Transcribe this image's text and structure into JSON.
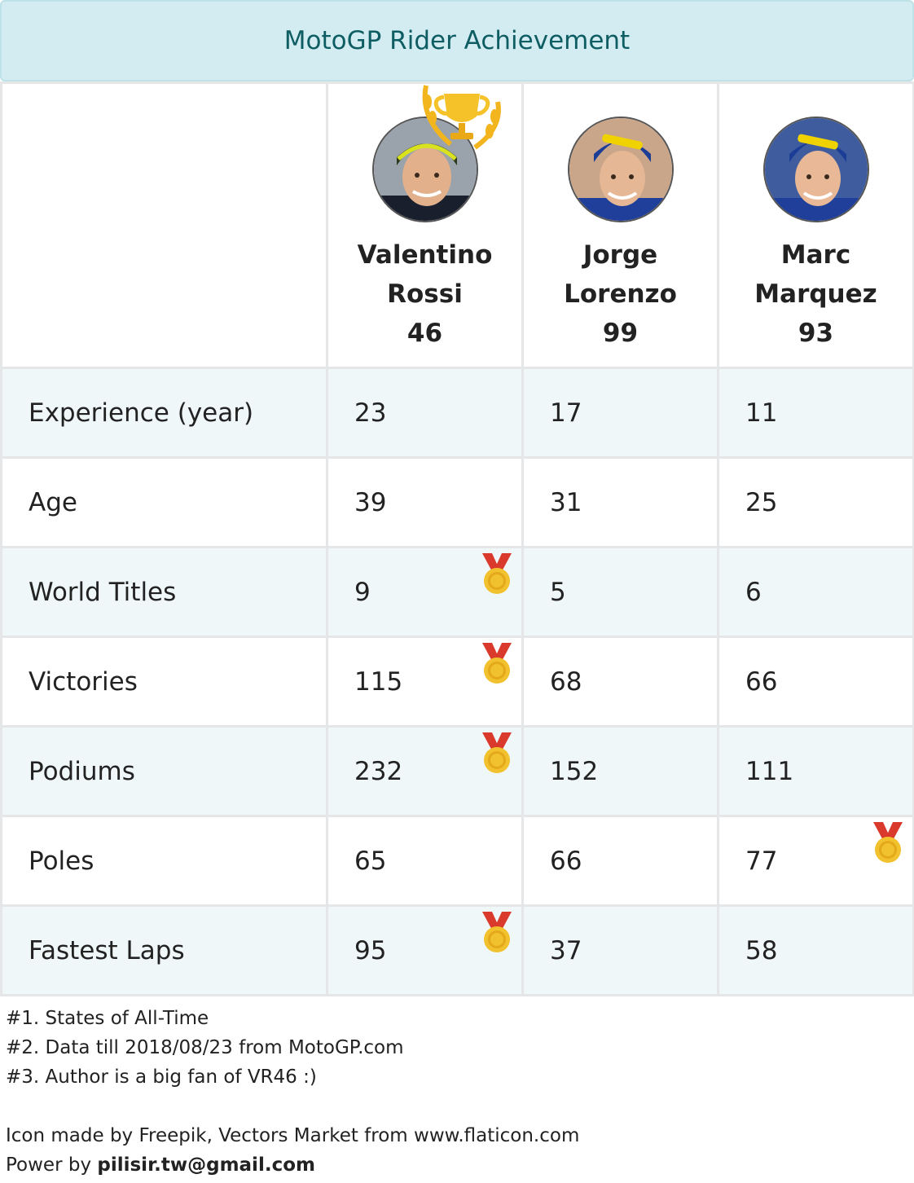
{
  "title": "MotoGP Rider Achievement",
  "riders": [
    {
      "first": "Valentino",
      "last": "Rossi",
      "number": "46",
      "jersey": "#1a1f2e",
      "cap": "#2b3a1f",
      "accent": "#d9e21f"
    },
    {
      "first": "Jorge",
      "last": "Lorenzo",
      "number": "99",
      "jersey": "#1f3f9a",
      "cap": "#1b3d96",
      "accent": "#f0d200"
    },
    {
      "first": "Marc",
      "last": "Marquez",
      "number": "93",
      "jersey": "#1f3f9a",
      "cap": "#1b3d96",
      "accent": "#f0d200"
    }
  ],
  "rows": [
    {
      "label": "Experience (year)",
      "values": [
        "23",
        "17",
        "11"
      ],
      "medal": null
    },
    {
      "label": "Age",
      "values": [
        "39",
        "31",
        "25"
      ],
      "medal": null
    },
    {
      "label": "World Titles",
      "values": [
        "9",
        "5",
        "6"
      ],
      "medal": 0
    },
    {
      "label": "Victories",
      "values": [
        "115",
        "68",
        "66"
      ],
      "medal": 0
    },
    {
      "label": "Podiums",
      "values": [
        "232",
        "152",
        "111"
      ],
      "medal": 0
    },
    {
      "label": "Poles",
      "values": [
        "65",
        "66",
        "77"
      ],
      "medal": 2
    },
    {
      "label": "Fastest Laps",
      "values": [
        "95",
        "37",
        "58"
      ],
      "medal": 0
    }
  ],
  "icons": {
    "winner": "trophy-icon",
    "best": "medal-icon"
  },
  "colors": {
    "title_bg": "#d3ecf1",
    "title_text": "#0d5d63",
    "stripe": "#eff7f9",
    "border": "#e4e6e7",
    "medal_gold": "#f2c12e",
    "ribbon_red": "#d93a2b"
  },
  "notes": {
    "line1": "#1. States of All-Time",
    "line2": "#2. Data till 2018/08/23 from MotoGP.com",
    "line3": "#3. Author is a big fan of VR46 :)",
    "credit": "Icon made by Freepik, Vectors Market from www.flaticon.com",
    "power_prefix": "Power by ",
    "power_email": "pilisir.tw@gmail.com"
  }
}
